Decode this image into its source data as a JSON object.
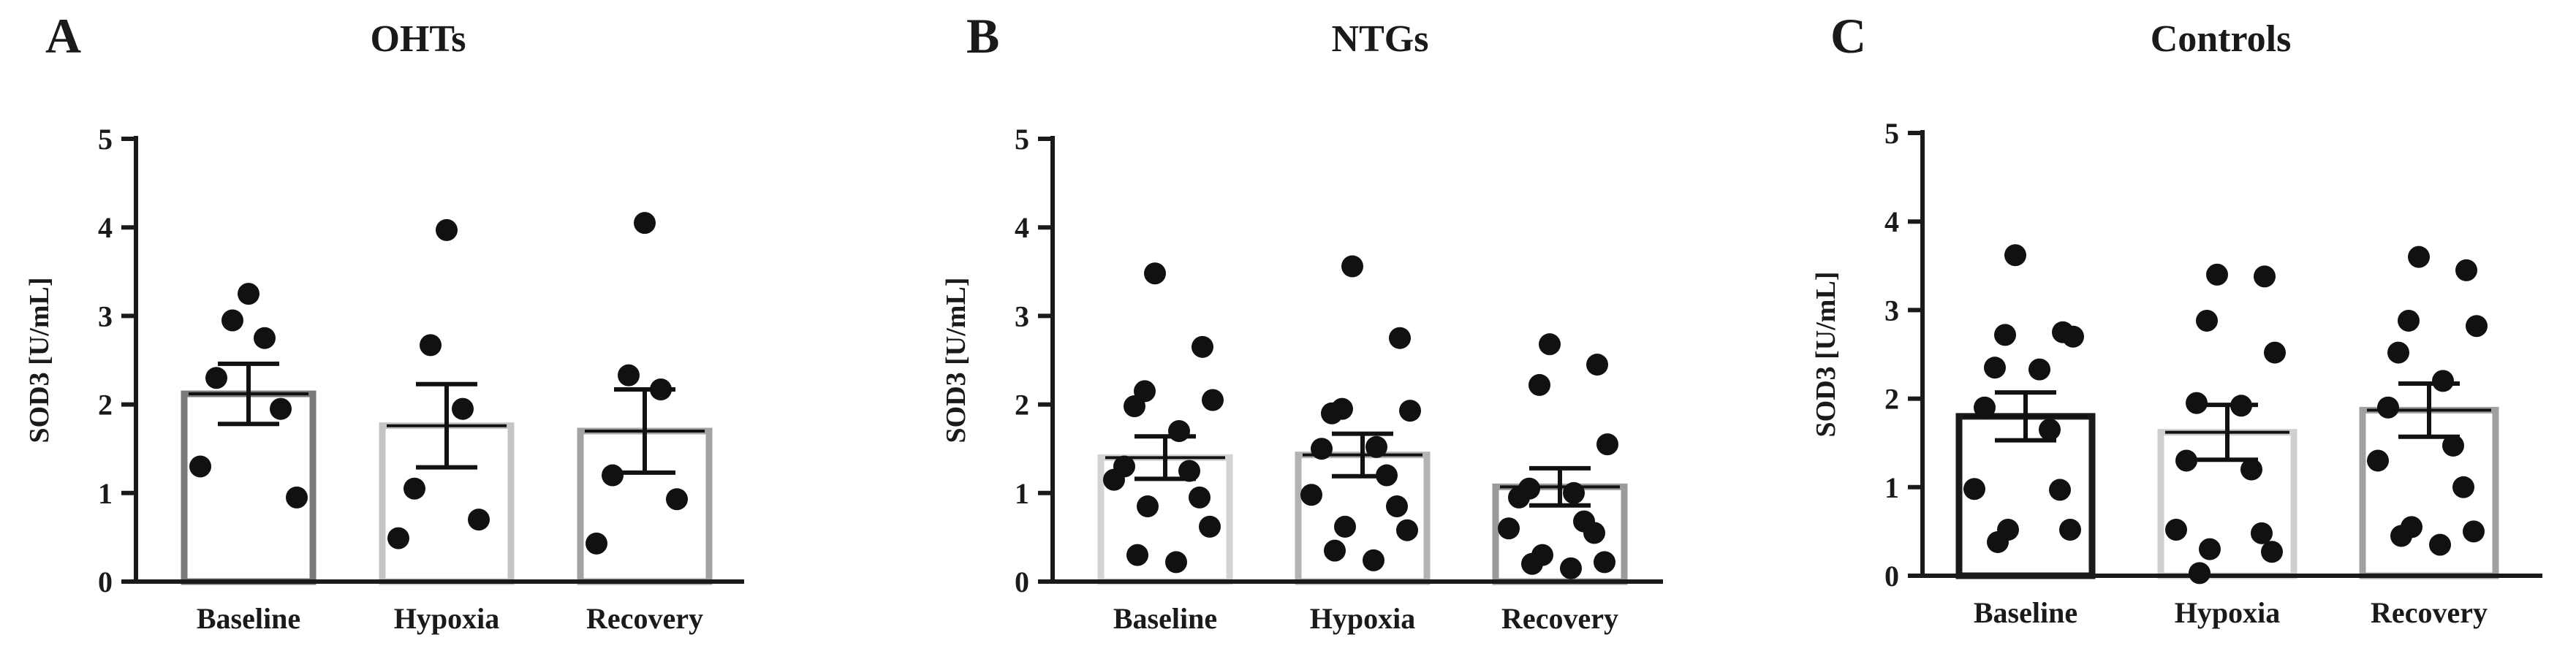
{
  "chart_data": [
    {
      "panel": "A",
      "type": "bar",
      "title": "OHTs",
      "xlabel": "",
      "ylabel": "SOD3 [U/mL]",
      "ylim": [
        0,
        5
      ],
      "yticks": [
        "0",
        "1",
        "2",
        "3",
        "4",
        "5"
      ],
      "categories": [
        "Baseline",
        "Hypoxia",
        "Recovery"
      ],
      "values": [
        2.12,
        1.76,
        1.7
      ],
      "sem": [
        0.34,
        0.47,
        0.47
      ],
      "bar_colors": [
        "#7a7a7a",
        "#c4c4c4",
        "#a3a3a3"
      ],
      "points": [
        [
          3.25,
          2.95,
          2.75,
          2.3,
          1.95,
          1.3,
          0.95
        ],
        [
          3.97,
          2.67,
          1.95,
          1.05,
          0.7,
          0.49
        ],
        [
          4.05,
          2.33,
          2.17,
          1.2,
          0.93,
          0.43
        ]
      ]
    },
    {
      "panel": "B",
      "type": "bar",
      "title": "NTGs",
      "xlabel": "",
      "ylabel": "SOD3 [U/mL]",
      "ylim": [
        0,
        5
      ],
      "yticks": [
        "0",
        "1",
        "2",
        "3",
        "4",
        "5"
      ],
      "categories": [
        "Baseline",
        "Hypoxia",
        "Recovery"
      ],
      "values": [
        1.4,
        1.43,
        1.07
      ],
      "sem": [
        0.24,
        0.24,
        0.21
      ],
      "bar_colors": [
        "#d4d4d4",
        "#b3b3b3",
        "#9a9a9a"
      ],
      "points": [
        [
          3.48,
          2.65,
          2.15,
          2.05,
          1.98,
          1.7,
          1.3,
          1.25,
          1.15,
          0.95,
          0.85,
          0.62,
          0.3,
          0.22
        ],
        [
          3.56,
          2.75,
          1.95,
          1.93,
          1.9,
          1.52,
          1.5,
          1.2,
          0.98,
          0.85,
          0.62,
          0.58,
          0.35,
          0.24
        ],
        [
          2.68,
          2.45,
          2.22,
          1.55,
          1.05,
          1.0,
          0.95,
          0.68,
          0.6,
          0.55,
          0.3,
          0.22,
          0.2,
          0.15
        ]
      ]
    },
    {
      "panel": "C",
      "type": "bar",
      "title": "Controls",
      "xlabel": "",
      "ylabel": "SOD3 [U/mL]",
      "ylim": [
        0,
        5
      ],
      "yticks": [
        "0",
        "1",
        "2",
        "3",
        "4",
        "5"
      ],
      "categories": [
        "Baseline",
        "Hypoxia",
        "Recovery"
      ],
      "values": [
        1.8,
        1.62,
        1.87
      ],
      "sem": [
        0.27,
        0.31,
        0.3
      ],
      "bar_colors": [
        "#1a1a1a",
        "#cfcfcf",
        "#a0a0a0"
      ],
      "points": [
        [
          3.62,
          2.75,
          2.72,
          2.7,
          2.35,
          2.33,
          1.9,
          1.65,
          0.98,
          0.97,
          0.52,
          0.52,
          0.38
        ],
        [
          3.4,
          3.38,
          2.88,
          2.52,
          1.95,
          1.92,
          1.3,
          1.2,
          0.52,
          0.48,
          0.3,
          0.27,
          0.03
        ],
        [
          3.6,
          3.45,
          2.88,
          2.82,
          2.52,
          2.2,
          1.9,
          1.47,
          1.3,
          1.0,
          0.55,
          0.5,
          0.45,
          0.35
        ]
      ]
    }
  ]
}
